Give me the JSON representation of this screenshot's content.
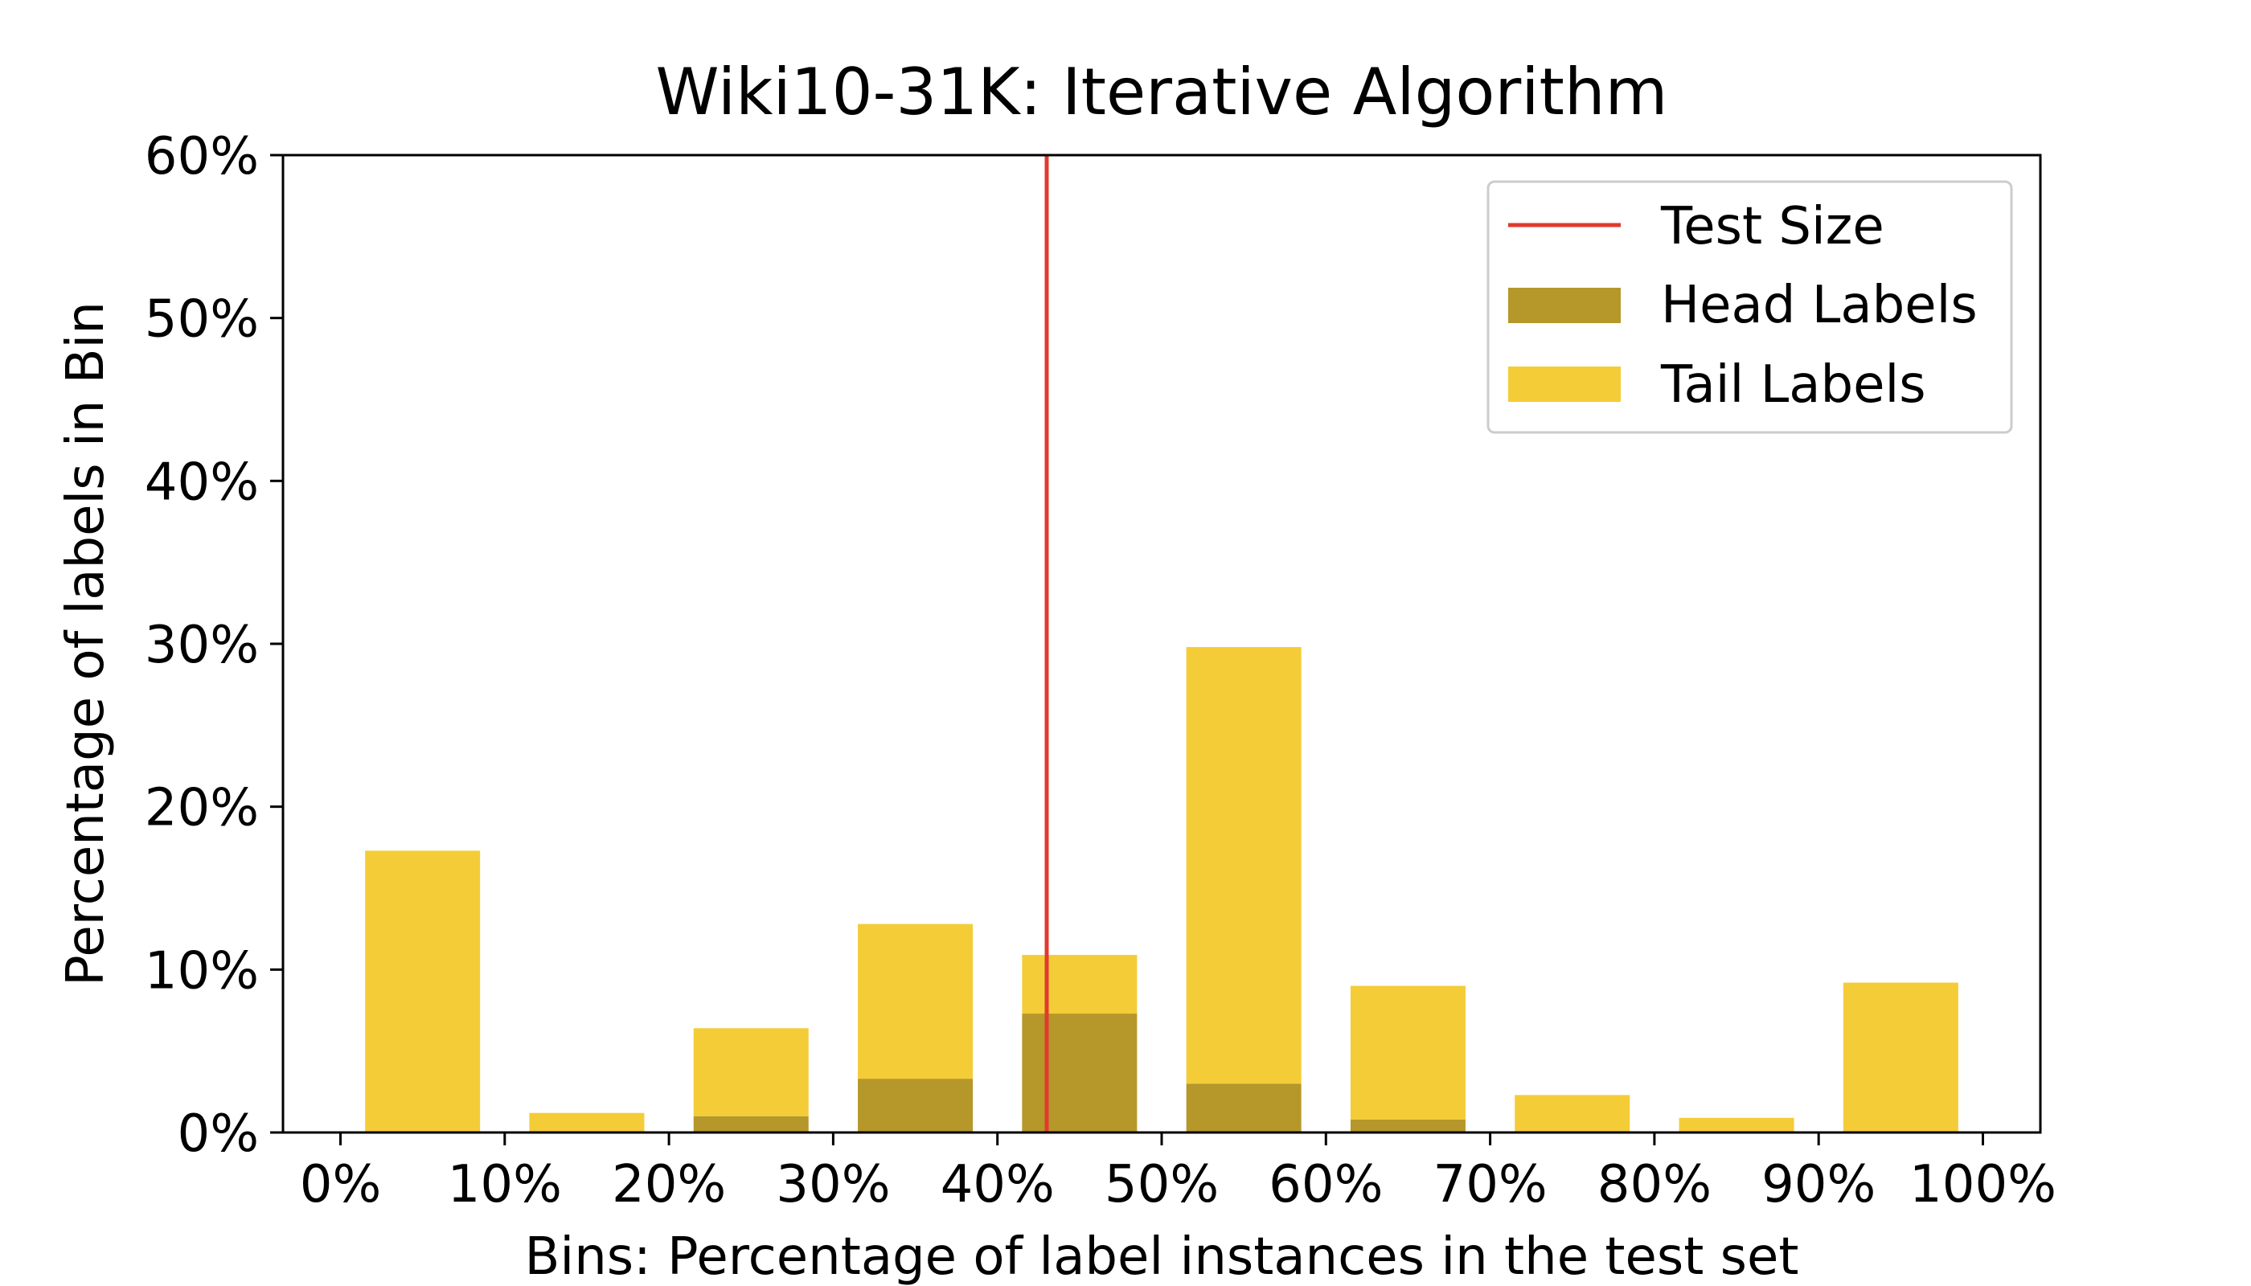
{
  "chart_data": {
    "type": "bar",
    "title": "Wiki10-31K: Iterative Algorithm",
    "xlabel": "Bins: Percentage of label instances in the test set",
    "ylabel": "Percentage of labels in Bin",
    "x_ticks": [
      "0%",
      "10%",
      "20%",
      "30%",
      "40%",
      "50%",
      "60%",
      "70%",
      "80%",
      "90%",
      "100%"
    ],
    "y_ticks": [
      "0%",
      "10%",
      "20%",
      "30%",
      "40%",
      "50%",
      "60%"
    ],
    "xlim": [
      -3.5,
      103.5
    ],
    "ylim": [
      0,
      60
    ],
    "bin_width": 7,
    "bin_centers": [
      5,
      15,
      25,
      35,
      45,
      55,
      65,
      75,
      85,
      95
    ],
    "series": [
      {
        "name": "Head Labels",
        "color": "#b5972a",
        "values": [
          0.0,
          0.0,
          1.0,
          3.3,
          7.3,
          3.0,
          0.8,
          0.0,
          0.0,
          0.0
        ]
      },
      {
        "name": "Tail Labels",
        "color": "#f4cc38",
        "values": [
          17.3,
          1.2,
          6.4,
          12.8,
          10.9,
          29.8,
          9.0,
          2.3,
          0.9,
          9.2
        ]
      }
    ],
    "test_size": {
      "name": "Test Size",
      "x": 43.0,
      "color": "#e03a2e"
    },
    "legend": {
      "position": "top-right",
      "entries": [
        "Test Size",
        "Head Labels",
        "Tail Labels"
      ]
    },
    "grid": false
  }
}
